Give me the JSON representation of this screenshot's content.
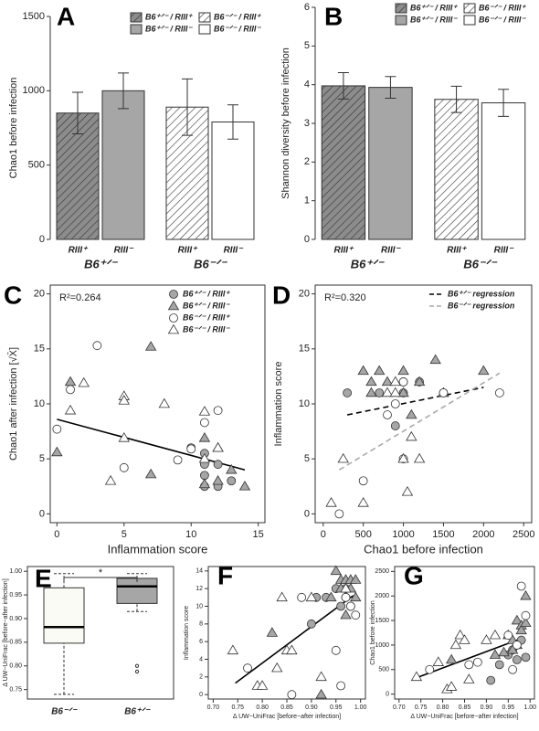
{
  "chart_data": [
    {
      "type": "bar",
      "label": "A",
      "ylabel": "Chao1 before infection",
      "categories": [
        "RIII⁺",
        "RIII⁻",
        "RIII⁺",
        "RIII⁻"
      ],
      "groups": [
        "B6⁺ᐟ⁻",
        "B6⁻ᐟ⁻"
      ],
      "values": [
        850,
        1000,
        890,
        790
      ],
      "errors": [
        140,
        120,
        190,
        115
      ],
      "colors": [
        "#8c8c8c",
        "#a6a6a6",
        "#ffffff",
        "#ffffff"
      ],
      "hatch": [
        true,
        false,
        true,
        false
      ],
      "legend": [
        "B6⁺ᐟ⁻ / RIII⁺",
        "B6⁺ᐟ⁻ / RIII⁻",
        "B6⁻ᐟ⁻ / RIII⁺",
        "B6⁻ᐟ⁻ / RIII⁻"
      ],
      "ylim": [
        0,
        1500
      ],
      "yticks": [
        0,
        500,
        1000,
        1500
      ]
    },
    {
      "type": "bar",
      "label": "B",
      "ylabel": "Shannon diversity before infection",
      "categories": [
        "RIII⁺",
        "RIII⁻",
        "RIII⁺",
        "RIII⁻"
      ],
      "groups": [
        "B6⁺ᐟ⁻",
        "B6⁻ᐟ⁻"
      ],
      "values": [
        3.97,
        3.93,
        3.62,
        3.53
      ],
      "errors": [
        0.34,
        0.28,
        0.34,
        0.35
      ],
      "colors": [
        "#8c8c8c",
        "#a6a6a6",
        "#ffffff",
        "#ffffff"
      ],
      "hatch": [
        true,
        false,
        true,
        false
      ],
      "legend": [
        "B6⁺ᐟ⁻ / RIII⁺",
        "B6⁺ᐟ⁻ / RIII⁻",
        "B6⁻ᐟ⁻ / RIII⁺",
        "B6⁻ᐟ⁻ / RIII⁻"
      ],
      "ylim": [
        0,
        6
      ],
      "yticks": [
        0,
        1,
        2,
        3,
        4,
        5,
        6
      ]
    },
    {
      "type": "scatter",
      "label": "C",
      "xlabel": "Inflammation score",
      "ylabel": "Chao1 after infection [√X̄]",
      "annotation": "R²=0.264",
      "legend": "top-right",
      "xlim": [
        -0.5,
        15.5
      ],
      "xticks": [
        0,
        5,
        10,
        15
      ],
      "ylim": [
        -0.8,
        20.8
      ],
      "yticks": [
        0,
        5,
        10,
        15,
        20
      ],
      "series": [
        {
          "name": "B6⁺ᐟ⁻ / RIII⁺",
          "marker": "circle",
          "color": "#a6a6a6",
          "x": [
            11,
            11,
            11,
            12,
            13,
            10,
            11,
            12
          ],
          "y": [
            2.5,
            5.5,
            4.5,
            2.5,
            3,
            6,
            3.5,
            4.5
          ]
        },
        {
          "name": "B6⁺ᐟ⁻ / RIII⁻",
          "marker": "triangle",
          "color": "#a6a6a6",
          "x": [
            7,
            1,
            0,
            7,
            11,
            12,
            13,
            14,
            12,
            11
          ],
          "y": [
            15.2,
            12,
            5.6,
            3.6,
            6.9,
            6,
            4,
            2.5,
            3,
            2.7
          ]
        },
        {
          "name": "B6⁻ᐟ⁻ / RIII⁺",
          "marker": "circle",
          "color": "#ffffff",
          "x": [
            3,
            1,
            0,
            5,
            9,
            10,
            12,
            11
          ],
          "y": [
            15.3,
            11.3,
            7.7,
            4.2,
            4.9,
            5.9,
            9.4,
            8.3
          ]
        },
        {
          "name": "B6⁻ᐟ⁻ / RIII⁻",
          "marker": "triangle",
          "color": "#ffffff",
          "x": [
            1,
            2,
            5,
            5,
            5,
            4,
            8,
            11,
            11,
            12
          ],
          "y": [
            9.4,
            11.9,
            10.7,
            10.3,
            6.9,
            3,
            10,
            9.3,
            5,
            6
          ]
        }
      ],
      "lines": [
        {
          "x": [
            0,
            14
          ],
          "y": [
            8.6,
            4
          ],
          "color": "#000000",
          "dash": false
        }
      ]
    },
    {
      "type": "scatter",
      "label": "D",
      "xlabel": "Chao1 before infection",
      "ylabel": "Inflammation score",
      "annotation": "R²=0.320",
      "legend": "top-right",
      "xlim": [
        -100,
        2600
      ],
      "xticks": [
        0,
        500,
        1000,
        1500,
        2000,
        2500
      ],
      "ylim": [
        -0.8,
        20.8
      ],
      "yticks": [
        0,
        5,
        10,
        15,
        20
      ],
      "series": [
        {
          "marker": "circle",
          "color": "#a6a6a6",
          "x": [
            300,
            900,
            1000,
            1200,
            1000,
            1500,
            700
          ],
          "y": [
            11,
            8,
            11,
            12,
            12,
            11,
            11
          ]
        },
        {
          "marker": "triangle",
          "color": "#a6a6a6",
          "x": [
            500,
            600,
            700,
            800,
            1000,
            1200,
            1400,
            1500,
            2000,
            1100,
            1000,
            600
          ],
          "y": [
            13,
            12,
            13,
            12,
            11,
            12,
            14,
            11,
            13,
            9,
            13,
            11
          ]
        },
        {
          "marker": "circle",
          "color": "#ffffff",
          "x": [
            200,
            500,
            800,
            900,
            1000,
            1500,
            2200,
            1000
          ],
          "y": [
            0,
            3,
            9,
            10,
            12,
            11,
            11,
            5
          ]
        },
        {
          "marker": "triangle",
          "color": "#ffffff",
          "x": [
            100,
            250,
            500,
            900,
            1000,
            1050,
            1100,
            1200,
            800,
            900
          ],
          "y": [
            1,
            5,
            1,
            12,
            5,
            2,
            7,
            5,
            11,
            11
          ]
        }
      ],
      "lines": [
        {
          "name": "B6⁺ᐟ⁻ regression",
          "x": [
            300,
            2000
          ],
          "y": [
            9,
            11.5
          ],
          "color": "#000000",
          "dash": true
        },
        {
          "name": "B6⁻ᐟ⁻ regression",
          "x": [
            200,
            2200
          ],
          "y": [
            4,
            12.8
          ],
          "color": "#aaaaaa",
          "dash": true
        }
      ]
    },
    {
      "type": "box",
      "label": "E",
      "ylabel": "Δ UW−UniFrac [before−after infection]",
      "annotation": "*",
      "boxes": [
        {
          "name": "B6⁻ᐟ⁻",
          "whislo": 0.74,
          "q1": 0.848,
          "med": 0.882,
          "q3": 0.965,
          "whishi": 0.995,
          "fliers": [],
          "color": "#fbfbf5"
        },
        {
          "name": "B6⁺ᐟ⁻",
          "whislo": 0.915,
          "q1": 0.932,
          "med": 0.968,
          "q3": 0.985,
          "whishi": 0.995,
          "fliers": [
            0.8,
            0.788
          ],
          "color": "#a6a6a6"
        }
      ],
      "ylim": [
        0.73,
        1.01
      ],
      "yticks": [
        {
          "value": 0.75,
          "label": "0.75"
        },
        {
          "value": 0.8,
          "label": "0.80"
        },
        {
          "value": 0.85,
          "label": "0.85"
        },
        {
          "value": 0.9,
          "label": "0.90"
        },
        {
          "value": 0.95,
          "label": "0.95"
        },
        {
          "value": 1,
          "label": "1.00"
        }
      ]
    },
    {
      "type": "scatter",
      "label": "F",
      "xlabel": "Δ UW−UniFrac [before−after infection]",
      "ylabel": "Inflammation score",
      "xlim": [
        0.69,
        1.01
      ],
      "xticks": [
        {
          "value": 0.7,
          "label": "0.70"
        },
        {
          "value": 0.75,
          "label": "0.75"
        },
        {
          "value": 0.8,
          "label": "0.80"
        },
        {
          "value": 0.85,
          "label": "0.85"
        },
        {
          "value": 0.9,
          "label": "0.90"
        },
        {
          "value": 0.95,
          "label": "0.95"
        },
        {
          "value": 1,
          "label": "1.00"
        }
      ],
      "ylim": [
        -0.5,
        14.5
      ],
      "yticks": [
        0,
        2,
        4,
        6,
        8,
        10,
        12,
        14
      ],
      "series": [
        {
          "marker": "circle",
          "color": "#a6a6a6",
          "x": [
            0.91,
            0.93,
            0.95,
            0.97,
            0.97,
            0.98,
            0.96,
            0.9
          ],
          "y": [
            11,
            11,
            12,
            12,
            11,
            10,
            10,
            8
          ]
        },
        {
          "marker": "triangle",
          "color": "#a6a6a6",
          "x": [
            0.95,
            0.96,
            0.97,
            0.98,
            0.99,
            0.98,
            0.82,
            0.99,
            0.97,
            0.92,
            0.96,
            0.94
          ],
          "y": [
            14,
            13,
            13,
            13,
            13,
            12,
            7,
            11,
            9,
            0,
            12,
            11
          ]
        },
        {
          "marker": "circle",
          "color": "#ffffff",
          "x": [
            0.77,
            0.86,
            0.88,
            0.95,
            0.98,
            0.99,
            0.97,
            0.96
          ],
          "y": [
            3,
            0,
            11,
            5,
            10,
            9,
            11,
            1
          ]
        },
        {
          "marker": "triangle",
          "color": "#ffffff",
          "x": [
            0.74,
            0.79,
            0.8,
            0.83,
            0.84,
            0.85,
            0.86,
            0.9,
            0.92,
            0.97
          ],
          "y": [
            5,
            1,
            1,
            3,
            11,
            5,
            5,
            11,
            2,
            12
          ]
        }
      ],
      "lines": [
        {
          "x": [
            0.745,
            0.985
          ],
          "y": [
            1.3,
            11.2
          ],
          "color": "#000000",
          "dash": false
        }
      ]
    },
    {
      "type": "scatter",
      "label": "G",
      "xlabel": "Δ UW−UniFrac [before−after infection]",
      "ylabel": "Chao1 before infection",
      "xlim": [
        0.69,
        1.01
      ],
      "xticks": [
        {
          "value": 0.7,
          "label": "0.70"
        },
        {
          "value": 0.75,
          "label": "0.75"
        },
        {
          "value": 0.8,
          "label": "0.80"
        },
        {
          "value": 0.85,
          "label": "0.85"
        },
        {
          "value": 0.9,
          "label": "0.90"
        },
        {
          "value": 0.95,
          "label": "0.95"
        },
        {
          "value": 1,
          "label": "1.00"
        }
      ],
      "ylim": [
        -100,
        2600
      ],
      "yticks": [
        0,
        500,
        1000,
        1500,
        2000,
        2500
      ],
      "series": [
        {
          "marker": "circle",
          "color": "#a6a6a6",
          "x": [
            0.91,
            0.93,
            0.95,
            0.97,
            0.97,
            0.98,
            0.96,
            0.99
          ],
          "y": [
            280,
            600,
            800,
            1000,
            700,
            1100,
            900,
            750
          ]
        },
        {
          "marker": "triangle",
          "color": "#a6a6a6",
          "x": [
            0.95,
            0.96,
            0.97,
            0.98,
            0.99,
            0.98,
            0.82,
            0.99,
            0.97,
            0.92,
            0.96,
            0.94
          ],
          "y": [
            1200,
            1100,
            1500,
            1400,
            2000,
            1300,
            700,
            1450,
            1000,
            800,
            900,
            850
          ]
        },
        {
          "marker": "circle",
          "color": "#ffffff",
          "x": [
            0.77,
            0.86,
            0.88,
            0.95,
            0.98,
            0.99,
            0.97,
            0.96
          ],
          "y": [
            500,
            600,
            650,
            1200,
            2200,
            1600,
            1000,
            500
          ]
        },
        {
          "marker": "triangle",
          "color": "#ffffff",
          "x": [
            0.74,
            0.79,
            0.81,
            0.82,
            0.83,
            0.84,
            0.85,
            0.86,
            0.9,
            0.92
          ],
          "y": [
            350,
            650,
            100,
            150,
            1000,
            1200,
            1100,
            300,
            1100,
            1200
          ]
        }
      ],
      "lines": [
        {
          "x": [
            0.745,
            0.985
          ],
          "y": [
            350,
            1150
          ],
          "color": "#000000",
          "dash": false
        }
      ]
    }
  ]
}
